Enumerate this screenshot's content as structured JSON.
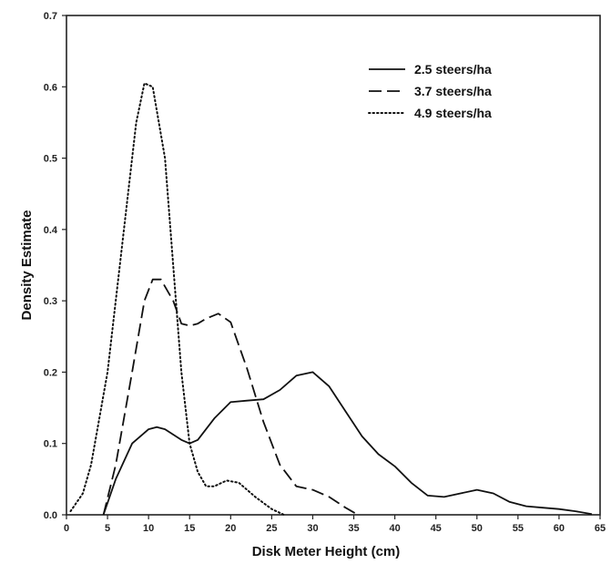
{
  "chart_data": {
    "type": "line",
    "title": "",
    "xlabel": "Disk Meter Height (cm)",
    "ylabel": "Density Estimate",
    "xlim": [
      0,
      65
    ],
    "ylim": [
      0,
      0.7
    ],
    "x_ticks": [
      "0",
      "5",
      "10",
      "15",
      "20",
      "25",
      "30",
      "35",
      "40",
      "45",
      "50",
      "55",
      "60",
      "65"
    ],
    "y_ticks": [
      "0.0",
      "0.1",
      "0.2",
      "0.3",
      "0.4",
      "0.5",
      "0.6",
      "0.7"
    ],
    "grid": false,
    "legend_position": "top-right",
    "series": [
      {
        "name": "2.5 steers/ha",
        "style": "solid",
        "color": "#111111",
        "points": [
          [
            4.5,
            0.0
          ],
          [
            6,
            0.05
          ],
          [
            8,
            0.1
          ],
          [
            10,
            0.12
          ],
          [
            11,
            0.123
          ],
          [
            12,
            0.12
          ],
          [
            14,
            0.105
          ],
          [
            15,
            0.1
          ],
          [
            16,
            0.105
          ],
          [
            18,
            0.135
          ],
          [
            20,
            0.158
          ],
          [
            22,
            0.16
          ],
          [
            24,
            0.162
          ],
          [
            26,
            0.175
          ],
          [
            28,
            0.195
          ],
          [
            30,
            0.2
          ],
          [
            32,
            0.18
          ],
          [
            34,
            0.145
          ],
          [
            36,
            0.11
          ],
          [
            38,
            0.085
          ],
          [
            40,
            0.068
          ],
          [
            42,
            0.045
          ],
          [
            44,
            0.027
          ],
          [
            46,
            0.025
          ],
          [
            48,
            0.03
          ],
          [
            50,
            0.035
          ],
          [
            52,
            0.03
          ],
          [
            54,
            0.018
          ],
          [
            56,
            0.012
          ],
          [
            58,
            0.01
          ],
          [
            60,
            0.008
          ],
          [
            62,
            0.005
          ],
          [
            64,
            0.001
          ]
        ]
      },
      {
        "name": "3.7 steers/ha",
        "style": "dashed",
        "color": "#111111",
        "points": [
          [
            4.5,
            0.0
          ],
          [
            6,
            0.07
          ],
          [
            8,
            0.2
          ],
          [
            9.5,
            0.3
          ],
          [
            10.5,
            0.33
          ],
          [
            11.5,
            0.33
          ],
          [
            13,
            0.3
          ],
          [
            14,
            0.268
          ],
          [
            15,
            0.265
          ],
          [
            16,
            0.268
          ],
          [
            17,
            0.275
          ],
          [
            18.5,
            0.282
          ],
          [
            20,
            0.27
          ],
          [
            22,
            0.205
          ],
          [
            24,
            0.13
          ],
          [
            26,
            0.07
          ],
          [
            28,
            0.04
          ],
          [
            30,
            0.035
          ],
          [
            32,
            0.025
          ],
          [
            34,
            0.01
          ],
          [
            35.5,
            0.0
          ]
        ]
      },
      {
        "name": "4.9 steers/ha",
        "style": "dotted",
        "color": "#111111",
        "points": [
          [
            0.5,
            0.005
          ],
          [
            2,
            0.03
          ],
          [
            3,
            0.07
          ],
          [
            5,
            0.2
          ],
          [
            7,
            0.4
          ],
          [
            8.5,
            0.55
          ],
          [
            9.5,
            0.605
          ],
          [
            10.5,
            0.6
          ],
          [
            12,
            0.5
          ],
          [
            13,
            0.35
          ],
          [
            14,
            0.2
          ],
          [
            15,
            0.1
          ],
          [
            16,
            0.06
          ],
          [
            17,
            0.04
          ],
          [
            18,
            0.04
          ],
          [
            19.5,
            0.048
          ],
          [
            21,
            0.045
          ],
          [
            23,
            0.025
          ],
          [
            25,
            0.008
          ],
          [
            26.5,
            0.0
          ]
        ]
      }
    ]
  }
}
